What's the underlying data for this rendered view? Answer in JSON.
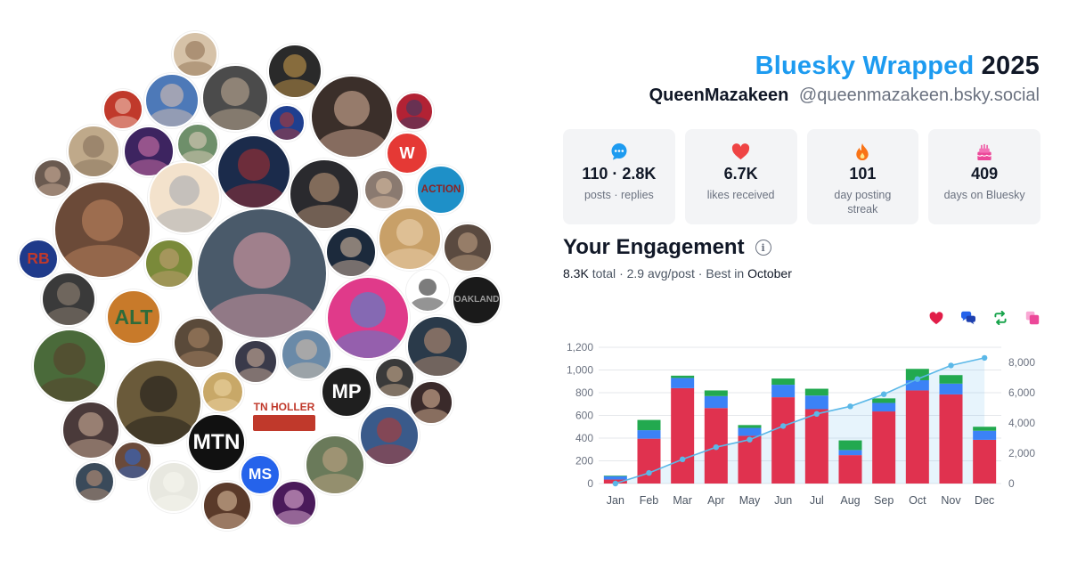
{
  "header": {
    "brand": "Bluesky Wrapped",
    "year": "2025",
    "display_name": "QueenMazakeen",
    "handle": "@queenmazakeen.bsky.social"
  },
  "stats": [
    {
      "icon": "speech-bubble-icon",
      "value": "110 · 2.8K",
      "label": "posts · replies",
      "color": "#1d9bf0"
    },
    {
      "icon": "heart-icon",
      "value": "6.7K",
      "label": "likes received",
      "color": "#ef4444"
    },
    {
      "icon": "flame-icon",
      "value": "101",
      "label": "day posting streak",
      "color": "#f97316"
    },
    {
      "icon": "cake-icon",
      "value": "409",
      "label": "days on Bluesky",
      "color": "#ec4899"
    }
  ],
  "engagement": {
    "title": "Your Engagement",
    "total": "8.3K",
    "total_label": "total",
    "avg": "2.9 avg/post",
    "best_prefix": "Best in",
    "best_month": "October",
    "legend_icons": [
      {
        "name": "likes-legend-icon",
        "color": "#e11d48"
      },
      {
        "name": "replies-legend-icon",
        "color": "#2563eb"
      },
      {
        "name": "reposts-legend-icon",
        "color": "#16a34a"
      },
      {
        "name": "quotes-legend-icon",
        "color": "#ec4899"
      }
    ]
  },
  "chart_data": {
    "type": "bar",
    "stacked": true,
    "categories": [
      "Jan",
      "Feb",
      "Mar",
      "Apr",
      "May",
      "Jun",
      "Jul",
      "Aug",
      "Sep",
      "Oct",
      "Nov",
      "Dec"
    ],
    "series": [
      {
        "color": "#e0324f",
        "values": [
          35,
          395,
          840,
          665,
          420,
          760,
          655,
          250,
          635,
          820,
          785,
          385
        ]
      },
      {
        "color": "#3b82f6",
        "values": [
          30,
          75,
          90,
          105,
          70,
          110,
          120,
          45,
          75,
          90,
          95,
          80
        ]
      },
      {
        "color": "#22a94f",
        "values": [
          5,
          90,
          20,
          50,
          25,
          55,
          60,
          85,
          40,
          100,
          75,
          35
        ]
      }
    ],
    "line": {
      "color": "#5bb8e8",
      "values": [
        0,
        700,
        1600,
        2400,
        2900,
        3800,
        4600,
        5100,
        5900,
        6900,
        7800,
        8300
      ]
    },
    "ylim_left": [
      0,
      1200
    ],
    "ylim_right": [
      0,
      9000
    ],
    "yticks_left": [
      "0",
      "200",
      "400",
      "600",
      "800",
      "1,000",
      "1,200"
    ],
    "yticks_right": [
      "0",
      "2,000",
      "4,000",
      "6,000",
      "8,000"
    ],
    "grid": true
  }
}
